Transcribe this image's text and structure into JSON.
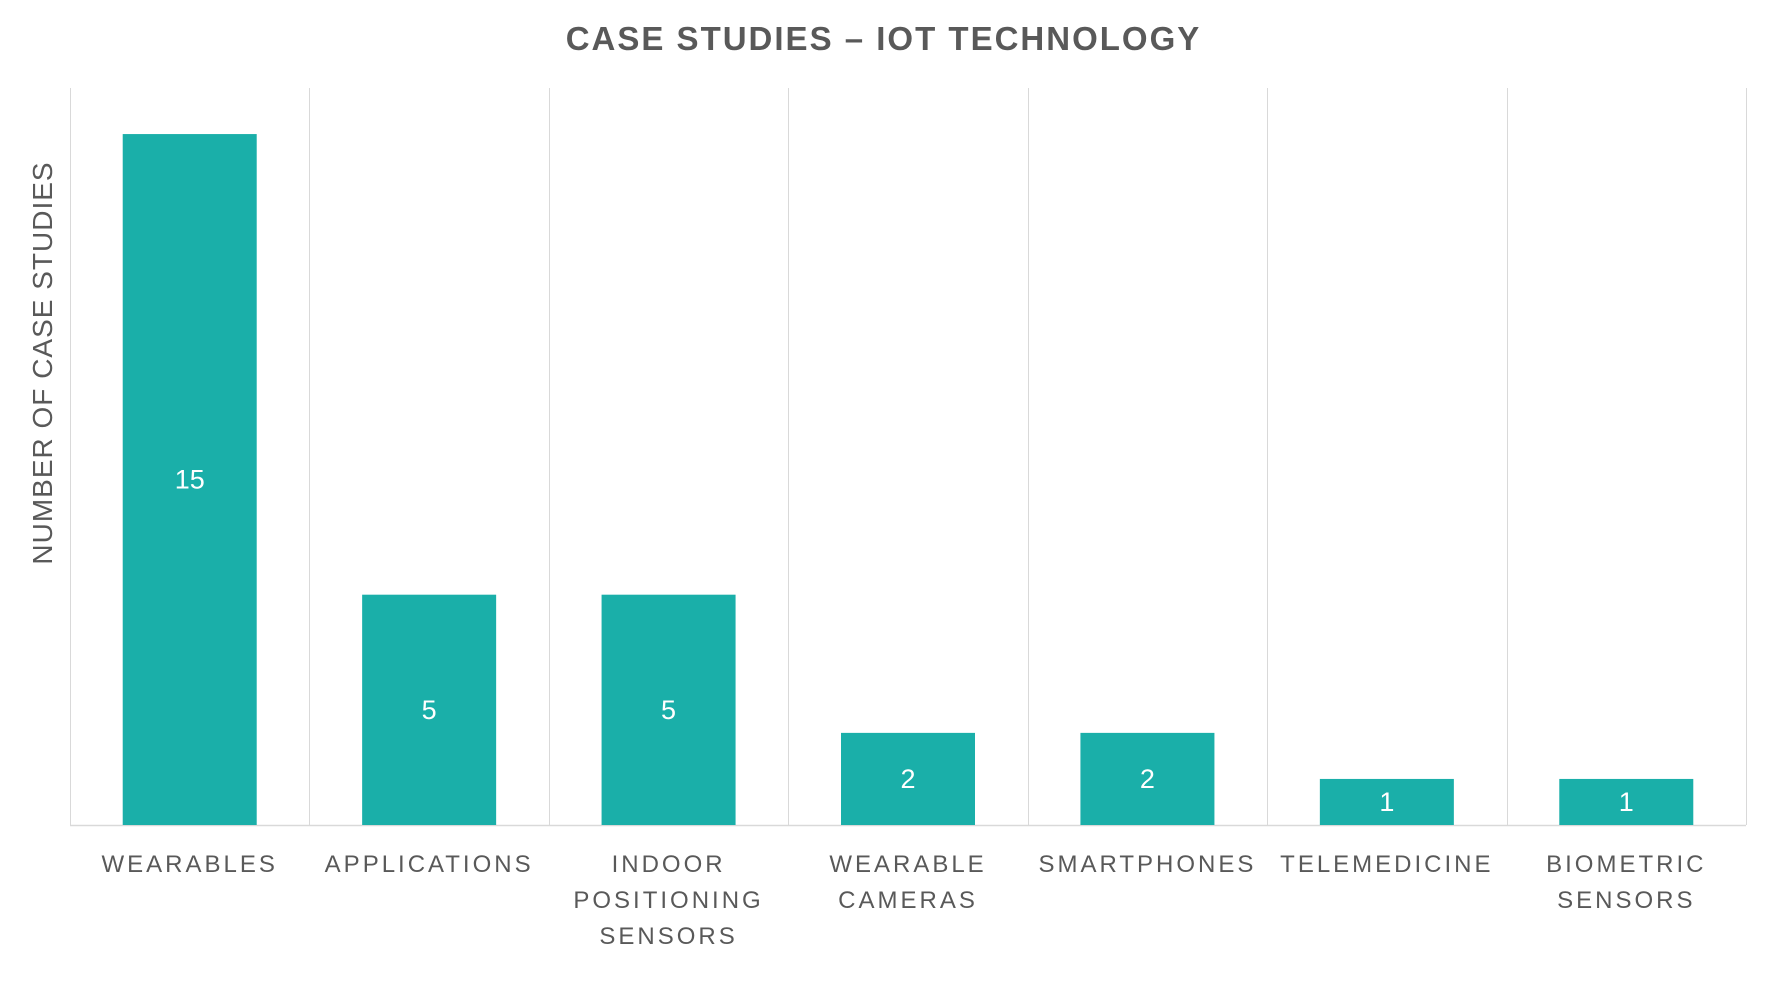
{
  "chart_data": {
    "type": "bar",
    "title": "CASE STUDIES – IOT TECHNOLOGY",
    "xlabel": "",
    "ylabel": "NUMBER OF CASE STUDIES",
    "categories": [
      [
        "WEARABLES"
      ],
      [
        "APPLICATIONS"
      ],
      [
        "INDOOR",
        "POSITIONING",
        "SENSORS"
      ],
      [
        "WEARABLE",
        "CAMERAS"
      ],
      [
        "SMARTPHONES"
      ],
      [
        "TELEMEDICINE"
      ],
      [
        "BIOMETRIC",
        "SENSORS"
      ]
    ],
    "values": [
      15,
      5,
      5,
      2,
      2,
      1,
      1
    ],
    "ylim": [
      0,
      16
    ],
    "grid": "vertical category separators",
    "legend": "none",
    "data_labels": "inside bars",
    "colors": {
      "bar": "#1aafa9",
      "data_label": "#ffffff",
      "grid": "#d9d9d9",
      "text": "#595959"
    }
  }
}
